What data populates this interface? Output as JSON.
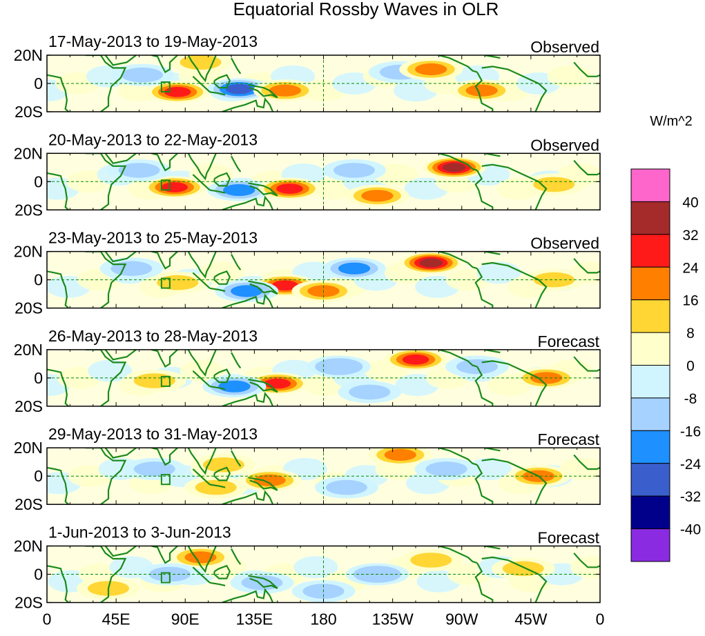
{
  "chart_data": {
    "type": "heatmap",
    "title": "Equatorial Rossby Waves in OLR",
    "units": "W/m^2",
    "x_ticks": [
      "0",
      "45E",
      "90E",
      "135E",
      "180",
      "135W",
      "90W",
      "45W",
      "0"
    ],
    "y_ticks": [
      "20N",
      "0",
      "20S"
    ],
    "xlim_deg_east": [
      0,
      360
    ],
    "ylim_deg_lat": [
      -20,
      20
    ],
    "colorbar": {
      "labels": [
        "40",
        "32",
        "24",
        "16",
        "8",
        "0",
        "-8",
        "-16",
        "-24",
        "-32",
        "-40"
      ],
      "levels": [
        40,
        32,
        24,
        16,
        8,
        0,
        -8,
        -16,
        -24,
        -32,
        -40
      ],
      "colors": [
        "#ff66cc",
        "#a52a2a",
        "#ff1a1a",
        "#ff7f00",
        "#ffd633",
        "#ffffcc",
        "#d1f5ff",
        "#a6d2ff",
        "#1e90ff",
        "#3a5fcd",
        "#00008b",
        "#8a2be2"
      ]
    },
    "panels": [
      {
        "date_range": "17-May-2013 to 19-May-2013",
        "label": "Observed",
        "anomalies": [
          {
            "lon": 85,
            "lat": -6,
            "value": 28
          },
          {
            "lon": 62,
            "lat": 6,
            "value": -14
          },
          {
            "lon": 125,
            "lat": -4,
            "value": -26
          },
          {
            "lon": 155,
            "lat": -5,
            "value": 18
          },
          {
            "lon": 230,
            "lat": 8,
            "value": -12
          },
          {
            "lon": 250,
            "lat": 10,
            "value": 20
          },
          {
            "lon": 283,
            "lat": -5,
            "value": 18
          },
          {
            "lon": 100,
            "lat": 15,
            "value": 14
          }
        ]
      },
      {
        "date_range": "20-May-2013 to 22-May-2013",
        "label": "Observed",
        "anomalies": [
          {
            "lon": 83,
            "lat": -4,
            "value": 26
          },
          {
            "lon": 125,
            "lat": -6,
            "value": -22
          },
          {
            "lon": 158,
            "lat": -5,
            "value": 24
          },
          {
            "lon": 200,
            "lat": 8,
            "value": -14
          },
          {
            "lon": 265,
            "lat": 10,
            "value": 34
          },
          {
            "lon": 215,
            "lat": -10,
            "value": 16
          },
          {
            "lon": 60,
            "lat": 8,
            "value": -10
          },
          {
            "lon": 330,
            "lat": -2,
            "value": 10
          }
        ]
      },
      {
        "date_range": "23-May-2013 to 25-May-2013",
        "label": "Observed",
        "anomalies": [
          {
            "lon": 155,
            "lat": -4,
            "value": 26
          },
          {
            "lon": 130,
            "lat": -8,
            "value": -20
          },
          {
            "lon": 250,
            "lat": 12,
            "value": 34
          },
          {
            "lon": 200,
            "lat": 8,
            "value": -18
          },
          {
            "lon": 85,
            "lat": -2,
            "value": 12
          },
          {
            "lon": 330,
            "lat": 0,
            "value": 14
          },
          {
            "lon": 180,
            "lat": -8,
            "value": 16
          },
          {
            "lon": 55,
            "lat": 8,
            "value": -12
          }
        ]
      },
      {
        "date_range": "26-May-2013 to 28-May-2013",
        "label": "Forecast",
        "anomalies": [
          {
            "lon": 150,
            "lat": -4,
            "value": 26
          },
          {
            "lon": 122,
            "lat": -6,
            "value": -18
          },
          {
            "lon": 240,
            "lat": 13,
            "value": 30
          },
          {
            "lon": 190,
            "lat": 8,
            "value": -16
          },
          {
            "lon": 325,
            "lat": 0,
            "value": 18
          },
          {
            "lon": 70,
            "lat": -2,
            "value": 12
          },
          {
            "lon": 210,
            "lat": -10,
            "value": -14
          },
          {
            "lon": 280,
            "lat": 8,
            "value": -10
          }
        ]
      },
      {
        "date_range": "29-May-2013 to 31-May-2013",
        "label": "Forecast",
        "anomalies": [
          {
            "lon": 145,
            "lat": -3,
            "value": 16
          },
          {
            "lon": 115,
            "lat": 8,
            "value": 14
          },
          {
            "lon": 230,
            "lat": 15,
            "value": 18
          },
          {
            "lon": 195,
            "lat": -8,
            "value": -14
          },
          {
            "lon": 320,
            "lat": 0,
            "value": 20
          },
          {
            "lon": 70,
            "lat": 5,
            "value": -12
          },
          {
            "lon": 260,
            "lat": 5,
            "value": -10
          },
          {
            "lon": 110,
            "lat": -8,
            "value": 12
          }
        ]
      },
      {
        "date_range": "1-Jun-2013 to 3-Jun-2013",
        "label": "Forecast",
        "anomalies": [
          {
            "lon": 100,
            "lat": 12,
            "value": 16
          },
          {
            "lon": 80,
            "lat": 0,
            "value": -14
          },
          {
            "lon": 215,
            "lat": 0,
            "value": -16
          },
          {
            "lon": 250,
            "lat": 10,
            "value": 12
          },
          {
            "lon": 310,
            "lat": 4,
            "value": 12
          },
          {
            "lon": 180,
            "lat": -12,
            "value": -10
          },
          {
            "lon": 140,
            "lat": -6,
            "value": -10
          },
          {
            "lon": 40,
            "lat": -10,
            "value": 10
          }
        ]
      }
    ]
  }
}
